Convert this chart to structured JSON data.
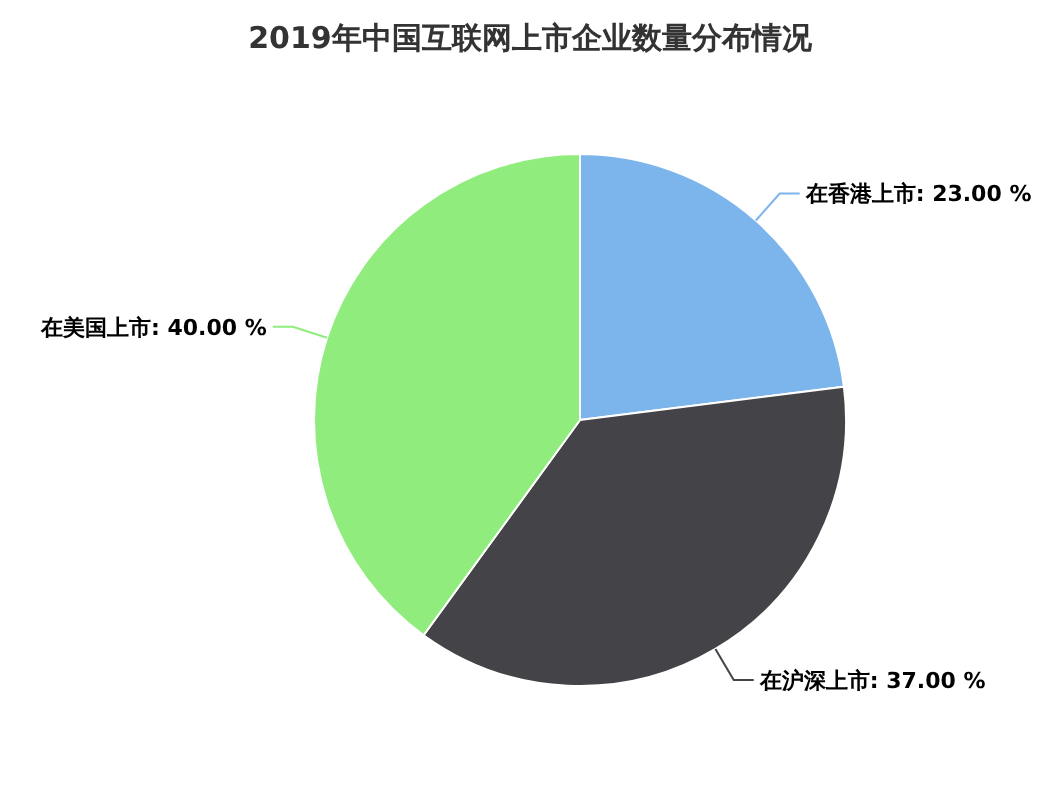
{
  "chart_data": {
    "type": "pie",
    "title": "2019年中国互联网上市企业数量分布情况",
    "categories": [
      "在香港上市",
      "在沪深上市",
      "在美国上市"
    ],
    "values": [
      23,
      37,
      40
    ],
    "value_labels": [
      "23.00 %",
      "37.00 %",
      "40.00 %"
    ],
    "colors": [
      "#7cb5ec",
      "#434348",
      "#90ed7d"
    ]
  }
}
